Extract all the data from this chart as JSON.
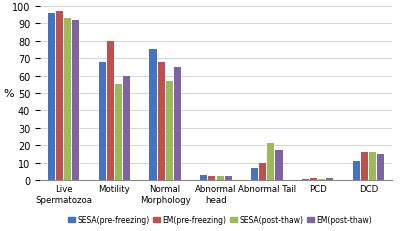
{
  "categories": [
    "Live\nSpermatozoa",
    "Motility",
    "Normal\nMorphology",
    "Abnormal\nhead",
    "Abnormal Tail",
    "PCD",
    "DCD"
  ],
  "series": {
    "SESA(pre-freezing)": [
      96,
      68,
      75,
      3,
      7,
      0.5,
      11
    ],
    "EM(pre-freezing)": [
      97,
      80,
      68,
      2,
      10,
      1,
      16
    ],
    "SESA(post-thaw)": [
      93,
      55,
      57,
      2,
      21,
      0.5,
      16
    ],
    "EM(post-thaw)": [
      92,
      60,
      65,
      2,
      17,
      1,
      15
    ]
  },
  "colors": {
    "SESA(pre-freezing)": "#4472C4",
    "EM(pre-freezing)": "#C0504D",
    "SESA(post-thaw)": "#9BBB59",
    "EM(post-thaw)": "#8064A2"
  },
  "ylabel": "%",
  "ylim": [
    0,
    100
  ],
  "yticks": [
    0,
    10,
    20,
    30,
    40,
    50,
    60,
    70,
    80,
    90,
    100
  ],
  "legend_labels": [
    "SESA(pre-freezing)",
    "EM(pre-freezing)",
    "SESA(post-thaw)",
    "EM(post-thaw)"
  ]
}
